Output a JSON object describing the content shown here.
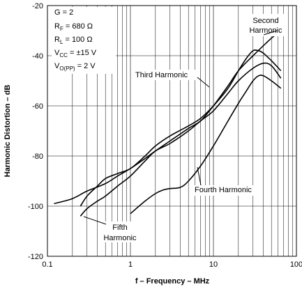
{
  "chart_data": {
    "type": "line",
    "xscale": "log",
    "xlim": [
      0.1,
      100
    ],
    "ylim": [
      -120,
      -20
    ],
    "xticks": [
      0.1,
      1,
      10,
      100
    ],
    "xtick_labels": [
      "0.1",
      "1",
      "10",
      "100"
    ],
    "yticks": [
      -120,
      -100,
      -80,
      -60,
      -40,
      -20
    ],
    "ytick_labels": [
      "-120",
      "-100",
      "-80",
      "-60",
      "-40",
      "-20"
    ],
    "grid": true,
    "xlabel": "f – Frequency – MHz",
    "ylabel": "Harmonic Distortion – dB",
    "conditions": [
      {
        "main": "G = 2",
        "sub": "",
        "tail": ""
      },
      {
        "main": "R",
        "sub": "F",
        "tail": " = 680 Ω"
      },
      {
        "main": "R",
        "sub": "L",
        "tail": " = 100 Ω"
      },
      {
        "main": "V",
        "sub": "CC",
        "tail": " = ±15 V"
      },
      {
        "main": "V",
        "sub": "O(PP)",
        "tail": " = 2 V"
      }
    ],
    "annotations": {
      "second": [
        "Second",
        "Harmonic"
      ],
      "third": [
        "Third Harmonic"
      ],
      "fourth": [
        "Fourth Harmonic"
      ],
      "fifth": [
        "Fifth",
        "Harmonic"
      ]
    },
    "series": [
      {
        "label_key": "second",
        "x": [
          0.12,
          0.2,
          0.3,
          0.5,
          0.7,
          1,
          1.5,
          2,
          3,
          5,
          7,
          10,
          15,
          20,
          30,
          50,
          65
        ],
        "y": [
          -99,
          -97,
          -94,
          -91,
          -88,
          -85,
          -81,
          -78,
          -74,
          -69,
          -66,
          -60,
          -52,
          -46,
          -40,
          -33,
          -30
        ]
      },
      {
        "label_key": "third",
        "x": [
          0.25,
          0.3,
          0.4,
          0.5,
          0.7,
          1,
          1.5,
          2,
          3,
          5,
          7,
          10,
          15,
          20,
          25,
          30,
          35,
          40,
          50,
          65
        ],
        "y": [
          -100,
          -96,
          -92,
          -89,
          -87,
          -85,
          -80,
          -76,
          -72,
          -68,
          -65,
          -60,
          -53,
          -46,
          -41,
          -38,
          -38,
          -39,
          -42,
          -46
        ]
      },
      {
        "label_key": "fourth",
        "x": [
          1,
          1.5,
          2,
          2.5,
          3,
          4,
          5,
          7,
          10,
          15,
          20,
          25,
          30,
          35,
          40,
          50,
          65
        ],
        "y": [
          -103,
          -98,
          -95,
          -93.5,
          -93,
          -92.5,
          -90,
          -84,
          -76,
          -66,
          -59,
          -54,
          -50,
          -48,
          -48,
          -50,
          -53
        ]
      },
      {
        "label_key": "fifth",
        "x": [
          0.25,
          0.3,
          0.4,
          0.5,
          0.7,
          1,
          1.5,
          2,
          3,
          5,
          7,
          10,
          15,
          20,
          30,
          40,
          50,
          65
        ],
        "y": [
          -104,
          -101,
          -98,
          -96,
          -92,
          -88,
          -82,
          -78,
          -75,
          -70,
          -66,
          -62,
          -55,
          -50,
          -45,
          -43,
          -44,
          -49
        ]
      }
    ]
  }
}
